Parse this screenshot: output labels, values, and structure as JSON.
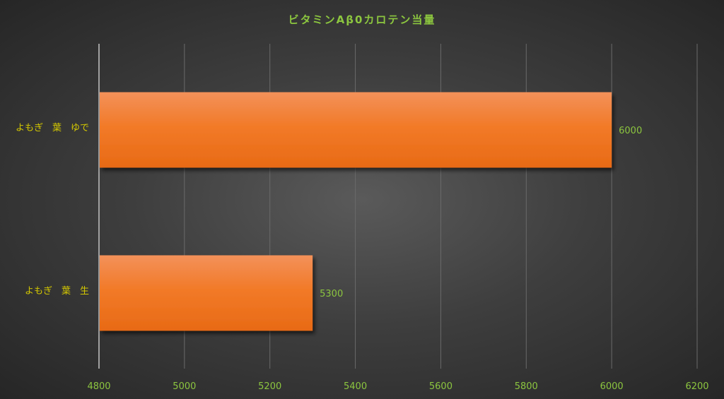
{
  "chart_data": {
    "type": "bar",
    "orientation": "horizontal",
    "title": "ビタミンAβ0カロテン当量",
    "categories": [
      "よもぎ　葉　ゆで",
      "よもぎ　葉　生"
    ],
    "values": [
      6000,
      5300
    ],
    "xlim": [
      4800,
      6200
    ],
    "xticks": [
      4800,
      5000,
      5200,
      5400,
      5600,
      5800,
      6000,
      6200
    ],
    "grid": true,
    "legend": "none",
    "colors": {
      "bar": "#f07a24",
      "bar_top": "#f3915a",
      "text": "#8cc63f",
      "category_text": "#d4c800",
      "grid": "#6a6a6a"
    }
  }
}
